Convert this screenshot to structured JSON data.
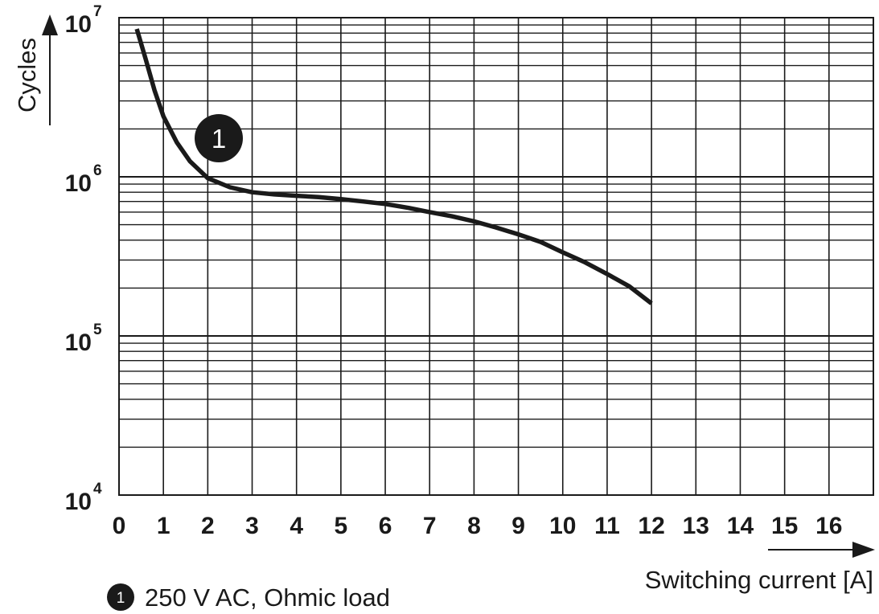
{
  "chart_data": {
    "type": "line",
    "xlabel": "Switching current [A]",
    "ylabel": "Cycles",
    "x_scale": "linear",
    "y_scale": "log",
    "xlim": [
      0,
      17
    ],
    "ylim": [
      10000,
      10000000
    ],
    "x_ticks": [
      "0",
      "1",
      "2",
      "3",
      "4",
      "5",
      "6",
      "7",
      "8",
      "9",
      "10",
      "11",
      "12",
      "13",
      "14",
      "15",
      "16"
    ],
    "y_ticks": [
      {
        "base": "10",
        "exp": "4",
        "value": 10000
      },
      {
        "base": "10",
        "exp": "5",
        "value": 100000
      },
      {
        "base": "10",
        "exp": "6",
        "value": 1000000
      },
      {
        "base": "10",
        "exp": "7",
        "value": 10000000
      }
    ],
    "grid": true,
    "series": [
      {
        "name": "250 V AC, Ohmic load",
        "marker_label": "1",
        "color": "#1a1a1a",
        "x": [
          0.4,
          0.6,
          0.8,
          1.0,
          1.3,
          1.6,
          2.0,
          2.5,
          3.0,
          3.5,
          4.0,
          4.5,
          5.0,
          5.5,
          6.0,
          6.5,
          7.0,
          7.5,
          8.0,
          8.5,
          9.0,
          9.5,
          10.0,
          10.5,
          11.0,
          11.5,
          12.0
        ],
        "y": [
          8500000,
          5500000,
          3500000,
          2400000,
          1650000,
          1250000,
          980000,
          860000,
          800000,
          775000,
          760000,
          745000,
          725000,
          700000,
          675000,
          640000,
          600000,
          565000,
          525000,
          480000,
          435000,
          390000,
          335000,
          290000,
          245000,
          205000,
          160000
        ]
      }
    ]
  },
  "legend": {
    "marker_label": "1",
    "text": "250 V AC, Ohmic load"
  }
}
